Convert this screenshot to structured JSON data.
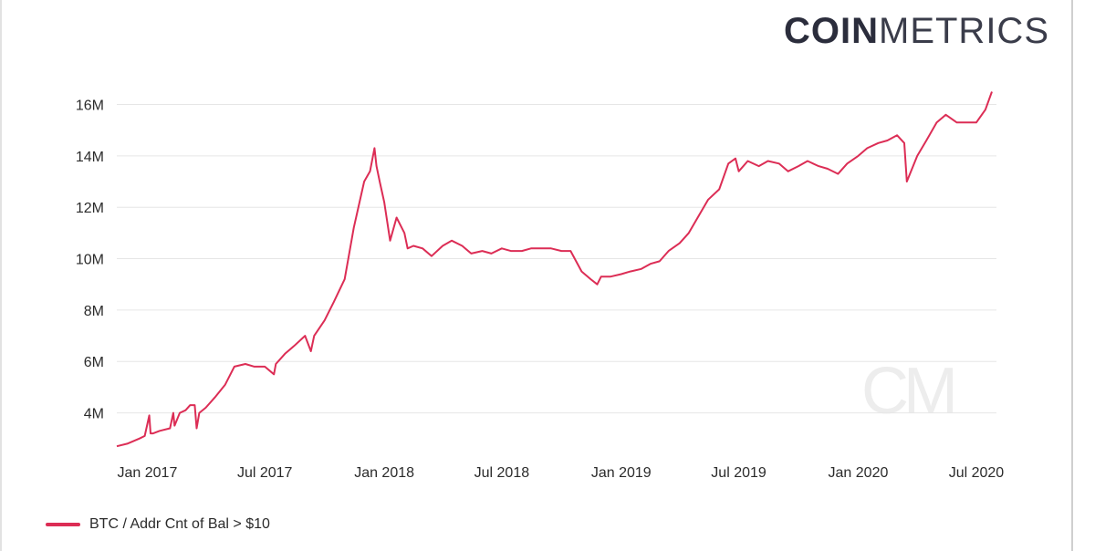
{
  "brand": {
    "logo_bold": "COIN",
    "logo_light": "METRICS",
    "watermark": "CM"
  },
  "colors": {
    "series": "#dc2d55",
    "grid": "#e6e6e6",
    "text": "#2b2b2b"
  },
  "chart_data": {
    "type": "line",
    "title": "",
    "xlabel": "",
    "ylabel": "",
    "x_ticks": [
      "Jan 2017",
      "Jul 2017",
      "Jan 2018",
      "Jul 2018",
      "Jan 2019",
      "Jul 2019",
      "Jan 2020",
      "Jul 2020"
    ],
    "y_ticks": [
      "4M",
      "6M",
      "8M",
      "10M",
      "12M",
      "14M",
      "16M"
    ],
    "y_tick_values": [
      4000000,
      6000000,
      8000000,
      10000000,
      12000000,
      14000000,
      16000000
    ],
    "ylim": [
      2600000,
      16800000
    ],
    "xlim": [
      "2016-11-15",
      "2020-08-01"
    ],
    "grid": true,
    "legend_position": "bottom-left",
    "series": [
      {
        "name": "BTC / Addr Cnt of Bal > $10",
        "x": [
          "2016-11-15",
          "2016-12-01",
          "2016-12-20",
          "2016-12-28",
          "2017-01-04",
          "2017-01-06",
          "2017-01-10",
          "2017-01-20",
          "2017-02-05",
          "2017-02-10",
          "2017-02-12",
          "2017-02-20",
          "2017-03-01",
          "2017-03-08",
          "2017-03-15",
          "2017-03-18",
          "2017-03-22",
          "2017-04-01",
          "2017-04-15",
          "2017-05-01",
          "2017-05-15",
          "2017-06-01",
          "2017-06-15",
          "2017-07-01",
          "2017-07-15",
          "2017-07-18",
          "2017-08-01",
          "2017-08-15",
          "2017-09-01",
          "2017-09-10",
          "2017-09-15",
          "2017-10-01",
          "2017-10-15",
          "2017-11-01",
          "2017-11-15",
          "2017-12-01",
          "2017-12-10",
          "2017-12-17",
          "2017-12-20",
          "2017-12-25",
          "2018-01-01",
          "2018-01-10",
          "2018-01-20",
          "2018-02-01",
          "2018-02-06",
          "2018-02-15",
          "2018-03-01",
          "2018-03-15",
          "2018-04-01",
          "2018-04-15",
          "2018-05-01",
          "2018-05-15",
          "2018-06-01",
          "2018-06-15",
          "2018-07-01",
          "2018-07-15",
          "2018-08-01",
          "2018-08-15",
          "2018-09-01",
          "2018-09-15",
          "2018-10-01",
          "2018-10-15",
          "2018-11-01",
          "2018-11-15",
          "2018-11-25",
          "2018-12-01",
          "2018-12-15",
          "2019-01-01",
          "2019-01-15",
          "2019-02-01",
          "2019-02-15",
          "2019-03-01",
          "2019-03-15",
          "2019-04-01",
          "2019-04-15",
          "2019-05-01",
          "2019-05-15",
          "2019-06-01",
          "2019-06-15",
          "2019-06-26",
          "2019-07-01",
          "2019-07-15",
          "2019-08-01",
          "2019-08-15",
          "2019-09-01",
          "2019-09-15",
          "2019-10-01",
          "2019-10-15",
          "2019-11-01",
          "2019-11-15",
          "2019-12-01",
          "2019-12-15",
          "2020-01-01",
          "2020-01-15",
          "2020-02-01",
          "2020-02-15",
          "2020-03-01",
          "2020-03-12",
          "2020-03-16",
          "2020-04-01",
          "2020-04-15",
          "2020-05-01",
          "2020-05-15",
          "2020-06-01",
          "2020-06-15",
          "2020-07-01",
          "2020-07-15",
          "2020-07-25"
        ],
        "values": [
          2700000,
          2800000,
          3000000,
          3100000,
          3900000,
          3200000,
          3200000,
          3300000,
          3400000,
          4000000,
          3500000,
          4000000,
          4100000,
          4300000,
          4300000,
          3400000,
          4000000,
          4200000,
          4600000,
          5100000,
          5800000,
          5900000,
          5800000,
          5800000,
          5500000,
          5900000,
          6300000,
          6600000,
          7000000,
          6400000,
          7000000,
          7600000,
          8300000,
          9200000,
          11200000,
          13000000,
          13400000,
          14300000,
          13600000,
          13000000,
          12200000,
          10700000,
          11600000,
          11000000,
          10400000,
          10500000,
          10400000,
          10100000,
          10500000,
          10700000,
          10500000,
          10200000,
          10300000,
          10200000,
          10400000,
          10300000,
          10300000,
          10400000,
          10400000,
          10400000,
          10300000,
          10300000,
          9500000,
          9200000,
          9000000,
          9300000,
          9300000,
          9400000,
          9500000,
          9600000,
          9800000,
          9900000,
          10300000,
          10600000,
          11000000,
          11700000,
          12300000,
          12700000,
          13700000,
          13900000,
          13400000,
          13800000,
          13600000,
          13800000,
          13700000,
          13400000,
          13600000,
          13800000,
          13600000,
          13500000,
          13300000,
          13700000,
          14000000,
          14300000,
          14500000,
          14600000,
          14800000,
          14500000,
          13000000,
          14000000,
          14600000,
          15300000,
          15600000,
          15300000,
          15300000,
          15300000,
          15800000,
          16500000
        ]
      }
    ]
  }
}
